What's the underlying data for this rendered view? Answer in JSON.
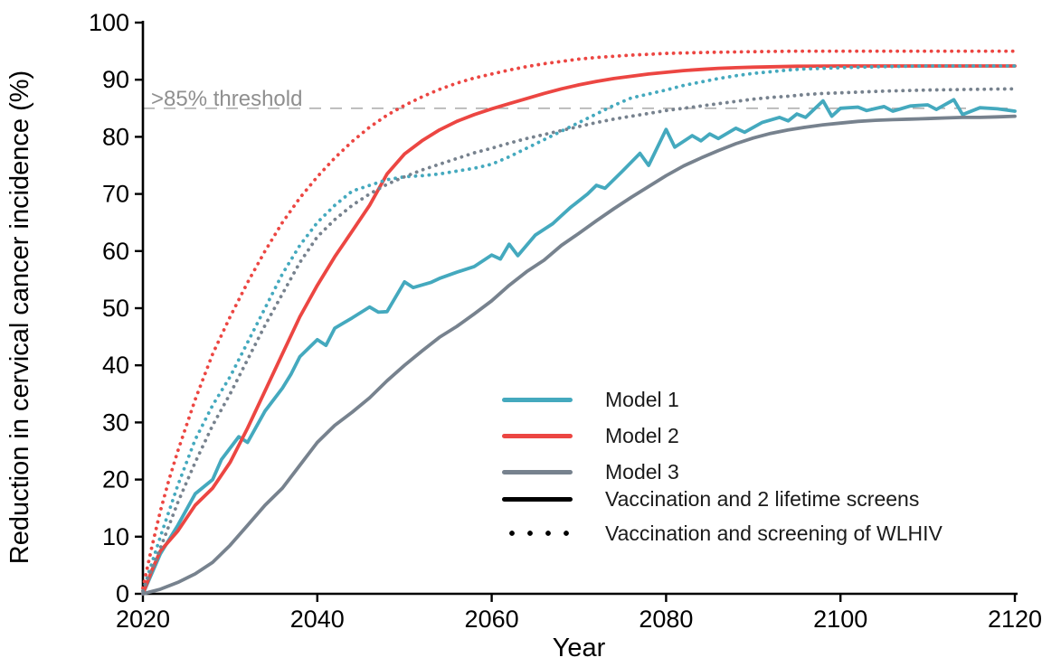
{
  "chart_data": {
    "type": "line",
    "title": "",
    "xlabel": "Year",
    "ylabel": "Reduction in cervical cancer incidence (%)",
    "x_range": [
      2020,
      2120
    ],
    "y_range": [
      0,
      100
    ],
    "x_ticks": [
      2020,
      2040,
      2060,
      2080,
      2100,
      2120
    ],
    "y_ticks": [
      0,
      10,
      20,
      30,
      40,
      50,
      60,
      70,
      80,
      90,
      100
    ],
    "grid": false,
    "legend_position": "inside-right-middle",
    "axis_color": "#000000",
    "threshold": {
      "value": 85,
      "label": ">85% threshold",
      "line_color": "#b0b0b0",
      "label_color": "#8f8f8f"
    },
    "series": [
      {
        "name": "Model 1 - Vaccination and 2 lifetime screens",
        "model": "Model 1",
        "scenario": "Vaccination and 2 lifetime screens",
        "line_style": "solid",
        "color": "#44a9be",
        "points": [
          [
            2020,
            0
          ],
          [
            2022,
            7
          ],
          [
            2024,
            12
          ],
          [
            2026,
            17.5
          ],
          [
            2028,
            20
          ],
          [
            2029,
            23.5
          ],
          [
            2031,
            27.5
          ],
          [
            2032,
            26.5
          ],
          [
            2034,
            32
          ],
          [
            2036,
            36
          ],
          [
            2037,
            38.5
          ],
          [
            2038,
            41.5
          ],
          [
            2040,
            44.5
          ],
          [
            2041,
            43.5
          ],
          [
            2042,
            46.5
          ],
          [
            2044,
            48.3
          ],
          [
            2046,
            50.2
          ],
          [
            2047,
            49.3
          ],
          [
            2048,
            49.4
          ],
          [
            2050,
            54.6
          ],
          [
            2051,
            53.6
          ],
          [
            2053,
            54.5
          ],
          [
            2054,
            55.2
          ],
          [
            2056,
            56.3
          ],
          [
            2058,
            57.3
          ],
          [
            2060,
            59.3
          ],
          [
            2061,
            58.6
          ],
          [
            2062,
            61.2
          ],
          [
            2063,
            59.2
          ],
          [
            2065,
            62.8
          ],
          [
            2067,
            64.8
          ],
          [
            2068,
            66.2
          ],
          [
            2069,
            67.6
          ],
          [
            2071,
            70
          ],
          [
            2072,
            71.5
          ],
          [
            2073,
            71
          ],
          [
            2075,
            74
          ],
          [
            2077,
            77.1
          ],
          [
            2078,
            75
          ],
          [
            2080,
            81.3
          ],
          [
            2081,
            78.2
          ],
          [
            2083,
            80.2
          ],
          [
            2084,
            79.3
          ],
          [
            2085,
            80.5
          ],
          [
            2086,
            79.7
          ],
          [
            2088,
            81.5
          ],
          [
            2089,
            80.8
          ],
          [
            2091,
            82.5
          ],
          [
            2093,
            83.4
          ],
          [
            2094,
            82.8
          ],
          [
            2095,
            84
          ],
          [
            2096,
            83.4
          ],
          [
            2098,
            86.3
          ],
          [
            2099,
            83.6
          ],
          [
            2100,
            85
          ],
          [
            2102,
            85.2
          ],
          [
            2103,
            84.6
          ],
          [
            2105,
            85.3
          ],
          [
            2106,
            84.5
          ],
          [
            2108,
            85.4
          ],
          [
            2110,
            85.6
          ],
          [
            2111,
            84.8
          ],
          [
            2113,
            86.5
          ],
          [
            2114,
            83.9
          ],
          [
            2116,
            85.1
          ],
          [
            2118,
            84.9
          ],
          [
            2120,
            84.5
          ]
        ]
      },
      {
        "name": "Model 2 - Vaccination and 2 lifetime screens",
        "model": "Model 2",
        "scenario": "Vaccination and 2 lifetime screens",
        "line_style": "solid",
        "color": "#ec4642",
        "points": [
          [
            2020,
            0
          ],
          [
            2021,
            4
          ],
          [
            2022,
            7.5
          ],
          [
            2024,
            11
          ],
          [
            2026,
            15.5
          ],
          [
            2028,
            18.5
          ],
          [
            2030,
            23
          ],
          [
            2032,
            29
          ],
          [
            2034,
            35.5
          ],
          [
            2036,
            42
          ],
          [
            2038,
            48.5
          ],
          [
            2040,
            54
          ],
          [
            2042,
            59
          ],
          [
            2044,
            63.5
          ],
          [
            2046,
            68
          ],
          [
            2048,
            73.5
          ],
          [
            2050,
            77
          ],
          [
            2052,
            79.3
          ],
          [
            2054,
            81.2
          ],
          [
            2056,
            82.7
          ],
          [
            2058,
            83.9
          ],
          [
            2060,
            84.9
          ],
          [
            2062,
            85.8
          ],
          [
            2064,
            86.7
          ],
          [
            2066,
            87.6
          ],
          [
            2068,
            88.4
          ],
          [
            2070,
            89.1
          ],
          [
            2072,
            89.7
          ],
          [
            2074,
            90.2
          ],
          [
            2076,
            90.6
          ],
          [
            2078,
            91
          ],
          [
            2080,
            91.3
          ],
          [
            2082,
            91.6
          ],
          [
            2084,
            91.8
          ],
          [
            2086,
            92
          ],
          [
            2088,
            92.1
          ],
          [
            2090,
            92.2
          ],
          [
            2095,
            92.35
          ],
          [
            2100,
            92.4
          ],
          [
            2110,
            92.4
          ],
          [
            2120,
            92.4
          ]
        ]
      },
      {
        "name": "Model 3 - Vaccination and 2 lifetime screens",
        "model": "Model 3",
        "scenario": "Vaccination and 2 lifetime screens",
        "line_style": "solid",
        "color": "#77828e",
        "points": [
          [
            2020,
            0
          ],
          [
            2022,
            0.8
          ],
          [
            2024,
            2
          ],
          [
            2026,
            3.5
          ],
          [
            2028,
            5.5
          ],
          [
            2030,
            8.5
          ],
          [
            2032,
            12
          ],
          [
            2034,
            15.5
          ],
          [
            2036,
            18.5
          ],
          [
            2038,
            22.5
          ],
          [
            2040,
            26.5
          ],
          [
            2042,
            29.5
          ],
          [
            2044,
            31.8
          ],
          [
            2046,
            34.3
          ],
          [
            2048,
            37.3
          ],
          [
            2050,
            40
          ],
          [
            2052,
            42.5
          ],
          [
            2054,
            44.9
          ],
          [
            2056,
            46.8
          ],
          [
            2058,
            49
          ],
          [
            2060,
            51.3
          ],
          [
            2062,
            54
          ],
          [
            2064,
            56.4
          ],
          [
            2066,
            58.4
          ],
          [
            2068,
            61
          ],
          [
            2070,
            63.1
          ],
          [
            2072,
            65.3
          ],
          [
            2074,
            67.4
          ],
          [
            2076,
            69.4
          ],
          [
            2078,
            71.3
          ],
          [
            2080,
            73.2
          ],
          [
            2082,
            74.9
          ],
          [
            2084,
            76.3
          ],
          [
            2086,
            77.6
          ],
          [
            2088,
            78.8
          ],
          [
            2090,
            79.8
          ],
          [
            2092,
            80.6
          ],
          [
            2094,
            81.2
          ],
          [
            2096,
            81.7
          ],
          [
            2098,
            82.1
          ],
          [
            2100,
            82.4
          ],
          [
            2102,
            82.7
          ],
          [
            2104,
            82.9
          ],
          [
            2106,
            83
          ],
          [
            2108,
            83.1
          ],
          [
            2110,
            83.2
          ],
          [
            2112,
            83.3
          ],
          [
            2114,
            83.4
          ],
          [
            2116,
            83.4
          ],
          [
            2118,
            83.5
          ],
          [
            2120,
            83.6
          ]
        ]
      },
      {
        "name": "Model 1 - Vaccination and screening of WLHIV",
        "model": "Model 1",
        "scenario": "Vaccination and screening of WLHIV",
        "line_style": "dotted",
        "color": "#44a9be",
        "points": [
          [
            2020,
            0.5
          ],
          [
            2022,
            10
          ],
          [
            2024,
            19
          ],
          [
            2026,
            27
          ],
          [
            2028,
            33
          ],
          [
            2030,
            38
          ],
          [
            2032,
            44
          ],
          [
            2034,
            50
          ],
          [
            2036,
            56
          ],
          [
            2038,
            61
          ],
          [
            2040,
            65
          ],
          [
            2042,
            68
          ],
          [
            2044,
            70.5
          ],
          [
            2046,
            71.5
          ],
          [
            2048,
            72.5
          ],
          [
            2050,
            73
          ],
          [
            2052,
            73.2
          ],
          [
            2054,
            73.5
          ],
          [
            2056,
            74
          ],
          [
            2058,
            74.5
          ],
          [
            2060,
            75.2
          ],
          [
            2062,
            76.5
          ],
          [
            2064,
            78
          ],
          [
            2066,
            79.5
          ],
          [
            2068,
            81
          ],
          [
            2070,
            82.5
          ],
          [
            2072,
            84
          ],
          [
            2074,
            85.5
          ],
          [
            2076,
            86.8
          ],
          [
            2078,
            87.5
          ],
          [
            2080,
            88.2
          ],
          [
            2082,
            89
          ],
          [
            2084,
            89.6
          ],
          [
            2086,
            90.2
          ],
          [
            2088,
            90.7
          ],
          [
            2090,
            91.1
          ],
          [
            2092,
            91.4
          ],
          [
            2094,
            91.7
          ],
          [
            2096,
            91.9
          ],
          [
            2098,
            92
          ],
          [
            2100,
            92.1
          ],
          [
            2105,
            92.3
          ],
          [
            2110,
            92.4
          ],
          [
            2115,
            92.4
          ],
          [
            2120,
            92.4
          ]
        ]
      },
      {
        "name": "Model 2 - Vaccination and screening of WLHIV",
        "model": "Model 2",
        "scenario": "Vaccination and screening of WLHIV",
        "line_style": "dotted",
        "color": "#ec4642",
        "points": [
          [
            2020,
            1
          ],
          [
            2021,
            8
          ],
          [
            2022,
            14.5
          ],
          [
            2023,
            20
          ],
          [
            2024,
            25
          ],
          [
            2026,
            34
          ],
          [
            2028,
            42
          ],
          [
            2030,
            48.5
          ],
          [
            2032,
            54.5
          ],
          [
            2034,
            60
          ],
          [
            2036,
            65
          ],
          [
            2038,
            69.3
          ],
          [
            2040,
            73
          ],
          [
            2042,
            76.3
          ],
          [
            2044,
            79.2
          ],
          [
            2046,
            81.7
          ],
          [
            2048,
            83.8
          ],
          [
            2050,
            85.5
          ],
          [
            2052,
            87
          ],
          [
            2054,
            88.3
          ],
          [
            2056,
            89.4
          ],
          [
            2058,
            90.3
          ],
          [
            2060,
            91
          ],
          [
            2062,
            91.7
          ],
          [
            2064,
            92.3
          ],
          [
            2066,
            92.8
          ],
          [
            2068,
            93.2
          ],
          [
            2070,
            93.6
          ],
          [
            2072,
            93.9
          ],
          [
            2074,
            94.1
          ],
          [
            2076,
            94.3
          ],
          [
            2078,
            94.45
          ],
          [
            2080,
            94.6
          ],
          [
            2085,
            94.8
          ],
          [
            2090,
            94.9
          ],
          [
            2095,
            95
          ],
          [
            2100,
            95
          ],
          [
            2110,
            95
          ],
          [
            2120,
            95
          ]
        ]
      },
      {
        "name": "Model 3 - Vaccination and screening of WLHIV",
        "model": "Model 3",
        "scenario": "Vaccination and screening of WLHIV",
        "line_style": "dotted",
        "color": "#77828e",
        "points": [
          [
            2020,
            0.5
          ],
          [
            2022,
            8
          ],
          [
            2024,
            16
          ],
          [
            2026,
            23
          ],
          [
            2028,
            29.5
          ],
          [
            2030,
            35
          ],
          [
            2032,
            41
          ],
          [
            2034,
            47
          ],
          [
            2036,
            52.5
          ],
          [
            2038,
            58
          ],
          [
            2040,
            62.5
          ],
          [
            2042,
            65.5
          ],
          [
            2044,
            68
          ],
          [
            2046,
            70
          ],
          [
            2048,
            71.7
          ],
          [
            2050,
            73
          ],
          [
            2052,
            74.2
          ],
          [
            2054,
            75.2
          ],
          [
            2056,
            76.2
          ],
          [
            2058,
            77.2
          ],
          [
            2060,
            78
          ],
          [
            2062,
            78.9
          ],
          [
            2064,
            79.7
          ],
          [
            2066,
            80.4
          ],
          [
            2068,
            81.1
          ],
          [
            2070,
            81.8
          ],
          [
            2072,
            82.5
          ],
          [
            2074,
            83.1
          ],
          [
            2076,
            83.6
          ],
          [
            2078,
            84.1
          ],
          [
            2080,
            84.6
          ],
          [
            2082,
            85
          ],
          [
            2084,
            85.4
          ],
          [
            2086,
            85.8
          ],
          [
            2088,
            86.2
          ],
          [
            2090,
            86.6
          ],
          [
            2092,
            86.9
          ],
          [
            2094,
            87.1
          ],
          [
            2096,
            87.4
          ],
          [
            2098,
            87.6
          ],
          [
            2100,
            87.7
          ],
          [
            2105,
            88
          ],
          [
            2110,
            88.2
          ],
          [
            2115,
            88.3
          ],
          [
            2120,
            88.4
          ]
        ]
      }
    ]
  },
  "legend": {
    "entries": [
      {
        "label": "Model 1",
        "color": "#44a9be",
        "style": "solid"
      },
      {
        "label": "Model 2",
        "color": "#ec4642",
        "style": "solid"
      },
      {
        "label": "Model 3",
        "color": "#77828e",
        "style": "solid"
      },
      {
        "label": "Vaccination and 2 lifetime screens",
        "color": "#000000",
        "style": "solid"
      },
      {
        "label": "Vaccination and screening of WLHIV",
        "color": "#000000",
        "style": "dotted"
      }
    ]
  }
}
